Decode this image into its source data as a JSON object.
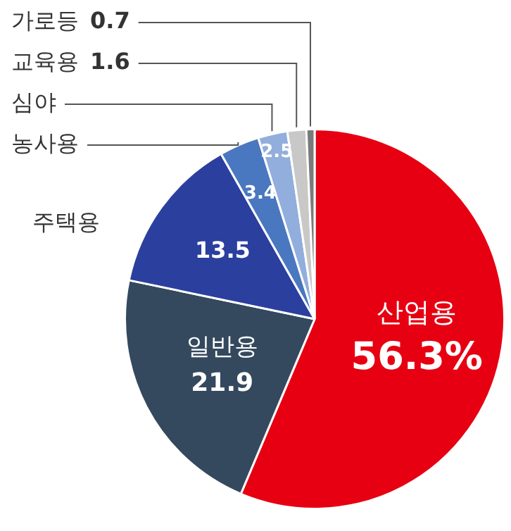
{
  "chart_data": {
    "type": "pie",
    "categories": [
      "산업용",
      "일반용",
      "주택용",
      "농사용",
      "심야",
      "교육용",
      "가로등"
    ],
    "values": [
      56.3,
      21.9,
      13.5,
      3.4,
      2.5,
      1.6,
      0.7
    ],
    "colors": [
      "#e60012",
      "#34495e",
      "#2b3f9e",
      "#4a78c0",
      "#92aedc",
      "#c8c8c8",
      "#7a7a7a"
    ],
    "value_labels": [
      "56.3%",
      "21.9",
      "13.5",
      "3.4",
      "2.5",
      "1.6",
      "0.7"
    ],
    "legend": false
  }
}
